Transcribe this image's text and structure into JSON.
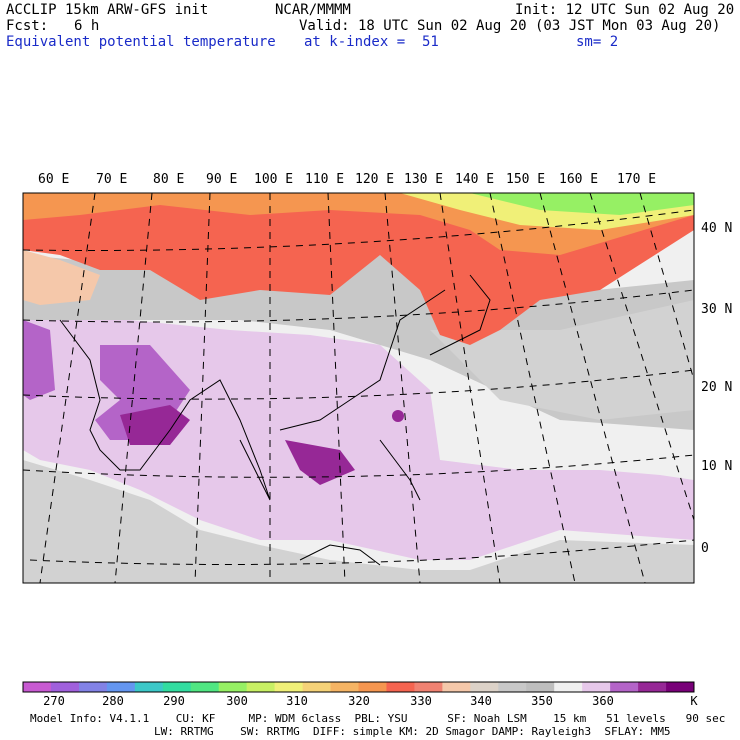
{
  "header": {
    "model_line": "ACCLIP 15km ARW-GFS init",
    "org": "NCAR/MMMM",
    "init": "Init: 12 UTC Sun 02 Aug 20",
    "fcst_label": "Fcst:",
    "fcst_value": "6 h",
    "valid": "Valid: 18 UTC Sun 02 Aug 20 (03 JST Mon 03 Aug 20)",
    "field_name": "Equivalent potential temperature",
    "level": "at k-index =  51",
    "smoothing": "sm= 2"
  },
  "map": {
    "lon_labels": [
      "60 E",
      "70 E",
      "80 E",
      "90 E",
      "100 E",
      "110 E",
      "120 E",
      "130 E",
      "140 E",
      "150 E",
      "160 E",
      "170 E"
    ],
    "lat_labels": [
      "40 N",
      "30 N",
      "20 N",
      "10 N",
      "0"
    ]
  },
  "colorbar": {
    "unit": "K",
    "colors": [
      "#c85ad2",
      "#a060dc",
      "#8282e6",
      "#6496f0",
      "#3cc8c8",
      "#32dca0",
      "#50e682",
      "#96f064",
      "#c8f064",
      "#f0f078",
      "#f5d278",
      "#f5b464",
      "#f59650",
      "#f56450",
      "#f08272",
      "#f5c8aa",
      "#dcd2c8",
      "#c8c8c8",
      "#bebebe",
      "#f0f0f0",
      "#e6c8ea",
      "#b464c8",
      "#962896",
      "#780078"
    ],
    "tick_labels": [
      "270",
      "280",
      "290",
      "300",
      "310",
      "320",
      "330",
      "340",
      "350",
      "360"
    ]
  },
  "footer": {
    "line1": "Model Info: V4.1.1    CU: KF     MP: WDM 6class  PBL: YSU      SF: Noah LSM    15 km   51 levels   90 sec",
    "line2": "LW: RRTMG    SW: RRTMG  DIFF: simple KM: 2D Smagor DAMP: Rayleigh3  SFLAY: MM5"
  }
}
